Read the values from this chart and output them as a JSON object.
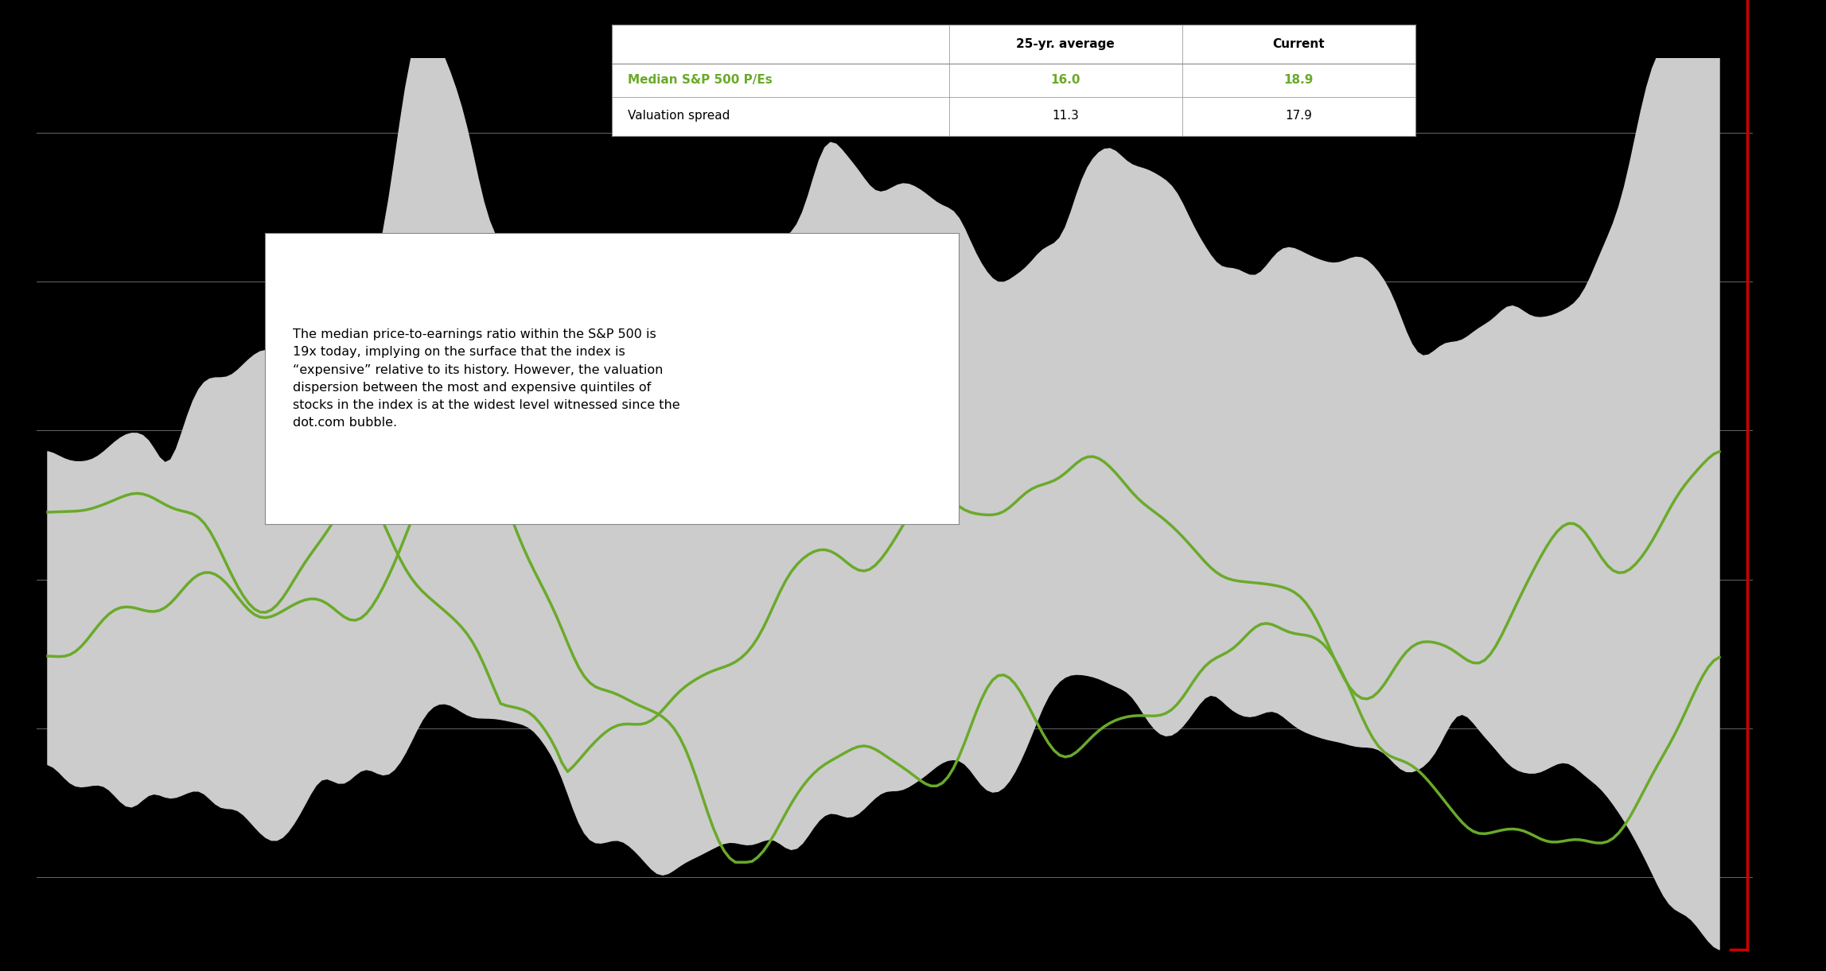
{
  "table": {
    "header": [
      "",
      "25-yr. average",
      "Current"
    ],
    "rows": [
      [
        "Median S&P 500 P/Es",
        "16.0",
        "18.9"
      ],
      [
        "Valuation spread",
        "11.3",
        "17.9"
      ]
    ],
    "row_colors": [
      "#6aaa2a",
      "#000000"
    ],
    "header_color": "#000000"
  },
  "annotation": "The median price-to-earnings ratio within the S&P 500 is\n19x today, implying on the surface that the index is\n“expensive” relative to its history. However, the valuation\ndispersion between the most and expensive quintiles of\nstocks in the index is at the widest level witnessed since the\ndot.com bubble.",
  "background_color": "#000000",
  "plot_bg_color": "#000000",
  "band_color": "#cccccc",
  "line1_color": "#6aaa2a",
  "line2_color": "#6aaa2a",
  "red_bracket_color": "#cc0000",
  "n_points": 300,
  "ylim": [
    -5,
    55
  ],
  "hlines": [
    0,
    10,
    20,
    30,
    40,
    50
  ],
  "hline_color": "#aaaaaa"
}
